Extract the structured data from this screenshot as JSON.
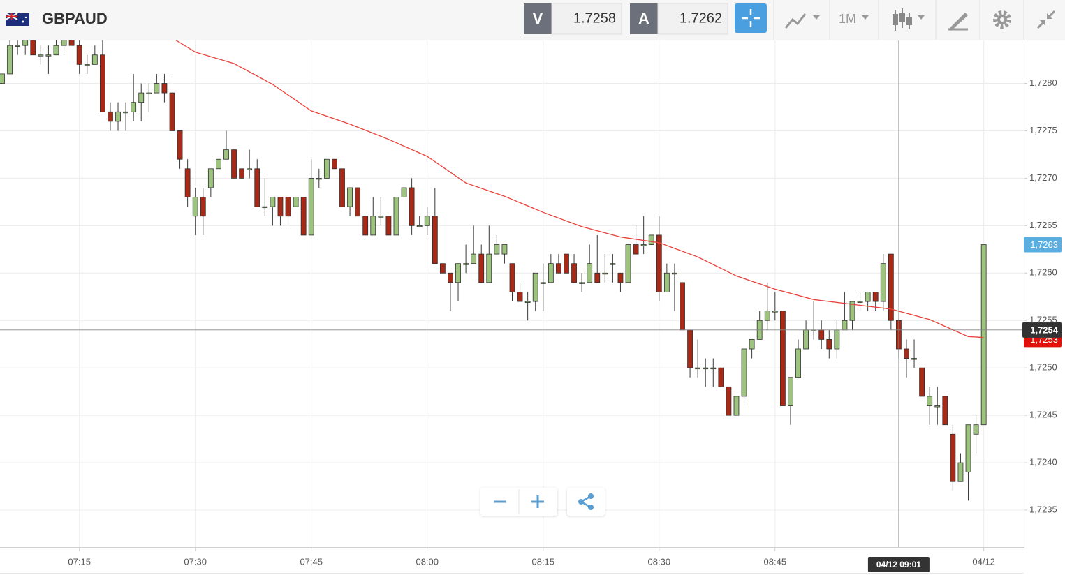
{
  "toolbar": {
    "symbol": "GBPAUD",
    "sell_label": "V",
    "sell_price": "1.7258",
    "buy_label": "A",
    "buy_price": "1.7262",
    "timeframe": "1M"
  },
  "chart_data": {
    "type": "candlestick",
    "x": [
      "07:05",
      "07:06",
      "07:07",
      "07:08",
      "07:09",
      "07:10",
      "07:11",
      "07:12",
      "07:13",
      "07:14",
      "07:15",
      "07:16",
      "07:17",
      "07:18",
      "07:19",
      "07:20",
      "07:21",
      "07:22",
      "07:23",
      "07:24",
      "07:25",
      "07:26",
      "07:27",
      "07:28",
      "07:29",
      "07:30",
      "07:31",
      "07:32",
      "07:33",
      "07:34",
      "07:35",
      "07:36",
      "07:37",
      "07:38",
      "07:39",
      "07:40",
      "07:41",
      "07:42",
      "07:43",
      "07:44",
      "07:45",
      "07:46",
      "07:47",
      "07:48",
      "07:49",
      "07:50",
      "07:51",
      "07:52",
      "07:53",
      "07:54",
      "07:55",
      "07:56",
      "07:57",
      "07:58",
      "07:59",
      "08:00",
      "08:01",
      "08:02",
      "08:03",
      "08:04",
      "08:05",
      "08:06",
      "08:07",
      "08:08",
      "08:09",
      "08:10",
      "08:11",
      "08:12",
      "08:13",
      "08:14",
      "08:15",
      "08:16",
      "08:17",
      "08:18",
      "08:19",
      "08:20",
      "08:21",
      "08:22",
      "08:23",
      "08:24",
      "08:25",
      "08:26",
      "08:27",
      "08:28",
      "08:29",
      "08:30",
      "08:31",
      "08:32",
      "08:33",
      "08:34",
      "08:35",
      "08:36",
      "08:37",
      "08:38",
      "08:39",
      "08:40",
      "08:41",
      "08:42",
      "08:43",
      "08:44",
      "08:45",
      "08:46",
      "08:47",
      "08:48",
      "08:49",
      "08:50",
      "08:51",
      "08:52",
      "08:53",
      "08:54",
      "08:55",
      "08:56",
      "08:57",
      "08:58",
      "08:59",
      "09:00",
      "09:01",
      "09:02",
      "09:03",
      "09:04",
      "09:05",
      "09:06",
      "09:07",
      "09:08",
      "09:09",
      "09:10",
      "09:11",
      "09:12"
    ],
    "open": [
      1.728,
      1.7281,
      1.7284,
      1.7284,
      1.7285,
      1.7283,
      1.7283,
      1.7283,
      1.7284,
      1.7285,
      1.7284,
      1.7282,
      1.7282,
      1.7283,
      1.7277,
      1.7276,
      1.7277,
      1.7277,
      1.7278,
      1.7279,
      1.7279,
      1.728,
      1.7279,
      1.7275,
      1.7271,
      1.7266,
      1.7268,
      1.7269,
      1.7271,
      1.7272,
      1.7273,
      1.7271,
      1.7271,
      1.7271,
      1.7267,
      1.7267,
      1.7268,
      1.7268,
      1.7267,
      1.7268,
      1.7264,
      1.727,
      1.727,
      1.7272,
      1.7271,
      1.7267,
      1.7269,
      1.7266,
      1.7264,
      1.7266,
      1.7266,
      1.7264,
      1.7268,
      1.7269,
      1.7265,
      1.7265,
      1.7266,
      1.7261,
      1.726,
      1.7259,
      1.7261,
      1.7261,
      1.7262,
      1.7259,
      1.7262,
      1.7262,
      1.7261,
      1.7258,
      1.7257,
      1.7257,
      1.7259,
      1.7259,
      1.7261,
      1.7262,
      1.7261,
      1.7259,
      1.7259,
      1.726,
      1.726,
      1.7261,
      1.726,
      1.7259,
      1.7263,
      1.7263,
      1.7263,
      1.7264,
      1.7258,
      1.726,
      1.7259,
      1.7254,
      1.725,
      1.725,
      1.725,
      1.725,
      1.7248,
      1.7245,
      1.7247,
      1.7252,
      1.7253,
      1.7255,
      1.7256,
      1.7256,
      1.7246,
      1.7249,
      1.7252,
      1.7254,
      1.7254,
      1.7253,
      1.7252,
      1.7254,
      1.7255,
      1.7257,
      1.7257,
      1.7258,
      1.7257,
      1.7262,
      1.7255,
      1.7252,
      1.7251,
      1.725,
      1.7246,
      1.7246,
      1.7247,
      1.7243,
      1.7238,
      1.7239,
      1.7243,
      1.7244
    ],
    "high": [
      1.7281,
      1.7285,
      1.7285,
      1.7286,
      1.7286,
      1.7284,
      1.7284,
      1.7285,
      1.7286,
      1.7286,
      1.7285,
      1.7283,
      1.7284,
      1.7286,
      1.7278,
      1.7278,
      1.7278,
      1.7281,
      1.728,
      1.728,
      1.7281,
      1.7281,
      1.7281,
      1.7275,
      1.7272,
      1.7269,
      1.7269,
      1.7271,
      1.7272,
      1.7275,
      1.7273,
      1.7271,
      1.7273,
      1.7272,
      1.727,
      1.7268,
      1.7268,
      1.7268,
      1.7268,
      1.7268,
      1.7272,
      1.7271,
      1.7272,
      1.7272,
      1.7271,
      1.7269,
      1.7269,
      1.7266,
      1.7268,
      1.7268,
      1.7266,
      1.7268,
      1.7269,
      1.727,
      1.7266,
      1.7267,
      1.7269,
      1.7261,
      1.726,
      1.7261,
      1.7263,
      1.7265,
      1.7263,
      1.7265,
      1.7264,
      1.7263,
      1.7261,
      1.7259,
      1.7258,
      1.726,
      1.7261,
      1.7262,
      1.7262,
      1.7262,
      1.7262,
      1.726,
      1.7263,
      1.7264,
      1.7262,
      1.7262,
      1.726,
      1.7263,
      1.7265,
      1.7266,
      1.7264,
      1.7266,
      1.7261,
      1.7261,
      1.7259,
      1.7254,
      1.7253,
      1.7251,
      1.7251,
      1.725,
      1.7248,
      1.7247,
      1.7252,
      1.7253,
      1.7256,
      1.7259,
      1.7258,
      1.7256,
      1.7249,
      1.7253,
      1.7255,
      1.7257,
      1.7255,
      1.7254,
      1.7255,
      1.7258,
      1.7257,
      1.7258,
      1.7258,
      1.7258,
      1.7262,
      1.7262,
      1.7255,
      1.7253,
      1.7253,
      1.725,
      1.7248,
      1.7248,
      1.7247,
      1.7244,
      1.7241,
      1.7244,
      1.7245,
      1.7263
    ],
    "low": [
      1.728,
      1.7281,
      1.7283,
      1.7283,
      1.7283,
      1.7282,
      1.7281,
      1.7283,
      1.7283,
      1.7284,
      1.7281,
      1.7281,
      1.7282,
      1.7277,
      1.7275,
      1.7275,
      1.7275,
      1.7276,
      1.7276,
      1.7277,
      1.7279,
      1.7278,
      1.7275,
      1.7271,
      1.7267,
      1.7264,
      1.7264,
      1.7268,
      1.7271,
      1.7272,
      1.727,
      1.727,
      1.727,
      1.7267,
      1.7266,
      1.7265,
      1.7265,
      1.7265,
      1.7267,
      1.7264,
      1.7264,
      1.7269,
      1.727,
      1.7271,
      1.7267,
      1.7266,
      1.7266,
      1.7264,
      1.7264,
      1.7265,
      1.7264,
      1.7264,
      1.7268,
      1.7264,
      1.7265,
      1.7264,
      1.7261,
      1.726,
      1.7256,
      1.7257,
      1.726,
      1.7261,
      1.7259,
      1.7259,
      1.7262,
      1.7261,
      1.7257,
      1.7257,
      1.7255,
      1.7256,
      1.7256,
      1.7259,
      1.726,
      1.726,
      1.7259,
      1.7258,
      1.7259,
      1.7259,
      1.7259,
      1.7259,
      1.7258,
      1.7259,
      1.7262,
      1.7262,
      1.7263,
      1.7257,
      1.7258,
      1.7256,
      1.7254,
      1.7249,
      1.7249,
      1.7248,
      1.7248,
      1.7248,
      1.7245,
      1.7245,
      1.7246,
      1.7251,
      1.7253,
      1.7254,
      1.7255,
      1.7246,
      1.7244,
      1.7249,
      1.7252,
      1.7253,
      1.7252,
      1.7251,
      1.7251,
      1.7254,
      1.7254,
      1.7256,
      1.7256,
      1.7256,
      1.7256,
      1.7254,
      1.7251,
      1.7249,
      1.725,
      1.7247,
      1.7244,
      1.7244,
      1.7244,
      1.7237,
      1.7238,
      1.7236,
      1.7241,
      1.7244
    ],
    "close": [
      1.7281,
      1.7284,
      1.7284,
      1.7285,
      1.7283,
      1.7283,
      1.7283,
      1.7284,
      1.7285,
      1.7284,
      1.7282,
      1.7282,
      1.7283,
      1.7277,
      1.7276,
      1.7277,
      1.7277,
      1.7278,
      1.7279,
      1.7279,
      1.728,
      1.7279,
      1.7275,
      1.7272,
      1.7268,
      1.7268,
      1.7266,
      1.7271,
      1.7272,
      1.7273,
      1.727,
      1.727,
      1.7271,
      1.7267,
      1.7267,
      1.7268,
      1.7266,
      1.7266,
      1.7268,
      1.7264,
      1.727,
      1.727,
      1.7272,
      1.7271,
      1.7267,
      1.7269,
      1.7266,
      1.7264,
      1.7266,
      1.7266,
      1.7264,
      1.7268,
      1.7269,
      1.7265,
      1.7265,
      1.7266,
      1.7261,
      1.726,
      1.7259,
      1.7261,
      1.7261,
      1.7262,
      1.7259,
      1.7262,
      1.7263,
      1.7263,
      1.7258,
      1.7257,
      1.7257,
      1.726,
      1.7259,
      1.7261,
      1.726,
      1.726,
      1.7259,
      1.7259,
      1.7261,
      1.7259,
      1.726,
      1.7261,
      1.7259,
      1.7263,
      1.7262,
      1.7263,
      1.7264,
      1.7258,
      1.726,
      1.726,
      1.7254,
      1.725,
      1.725,
      1.725,
      1.725,
      1.7248,
      1.7245,
      1.7247,
      1.7252,
      1.7253,
      1.7255,
      1.7256,
      1.7256,
      1.7246,
      1.7249,
      1.7252,
      1.7254,
      1.7254,
      1.7253,
      1.7252,
      1.7254,
      1.7255,
      1.7257,
      1.7257,
      1.7258,
      1.7257,
      1.7261,
      1.7255,
      1.7252,
      1.7251,
      1.7251,
      1.7247,
      1.7247,
      1.7246,
      1.7244,
      1.7238,
      1.724,
      1.7244,
      1.7244,
      1.7263
    ],
    "up_color": "#9cc47f",
    "down_color": "#a62a17",
    "ma": {
      "color": "#e8413a",
      "x": [
        "07:27",
        "07:30",
        "07:35",
        "07:40",
        "07:45",
        "07:50",
        "07:55",
        "08:00",
        "08:05",
        "08:10",
        "08:15",
        "08:20",
        "08:25",
        "08:30",
        "08:35",
        "08:40",
        "08:45",
        "08:50",
        "08:55",
        "09:00",
        "09:05",
        "09:10",
        "09:12"
      ],
      "values": [
        1.72848,
        1.72833,
        1.72821,
        1.72799,
        1.72771,
        1.72757,
        1.72741,
        1.72723,
        1.72695,
        1.72681,
        1.72664,
        1.72649,
        1.72638,
        1.72632,
        1.72617,
        1.72597,
        1.72583,
        1.72572,
        1.72567,
        1.72562,
        1.72551,
        1.72533,
        1.72532
      ]
    },
    "xlim": [
      "07:05",
      "09:17"
    ],
    "ylim": [
      1.72311,
      1.72846
    ],
    "xticks": [
      "07:15",
      "07:30",
      "07:45",
      "08:00",
      "08:15",
      "08:30",
      "08:45",
      {
        "value": "09:12",
        "label": "04/12"
      }
    ],
    "yticks": [
      {
        "value": 1.7235,
        "label": "1,7235"
      },
      {
        "value": 1.724,
        "label": "1,7240"
      },
      {
        "value": 1.7245,
        "label": "1,7245"
      },
      {
        "value": 1.725,
        "label": "1,7250"
      },
      {
        "value": 1.7255,
        "label": "1,7255"
      },
      {
        "value": 1.726,
        "label": "1,7260"
      },
      {
        "value": 1.7265,
        "label": "1,7265"
      },
      {
        "value": 1.727,
        "label": "1,7270"
      },
      {
        "value": 1.7275,
        "label": "1,7275"
      },
      {
        "value": 1.728,
        "label": "1,7280"
      }
    ],
    "grid": true,
    "price_tags": [
      {
        "value": 1.7263,
        "label": "1,7263",
        "color": "#5aaee0"
      },
      {
        "value": 1.7253,
        "label": "1,7253",
        "color": "#e0100a"
      }
    ],
    "crosshair": {
      "x": {
        "value": "09:01",
        "label": "04/12 09:01"
      },
      "y": {
        "value": 1.7254,
        "label": "1,7254"
      },
      "color": "#333333"
    }
  }
}
